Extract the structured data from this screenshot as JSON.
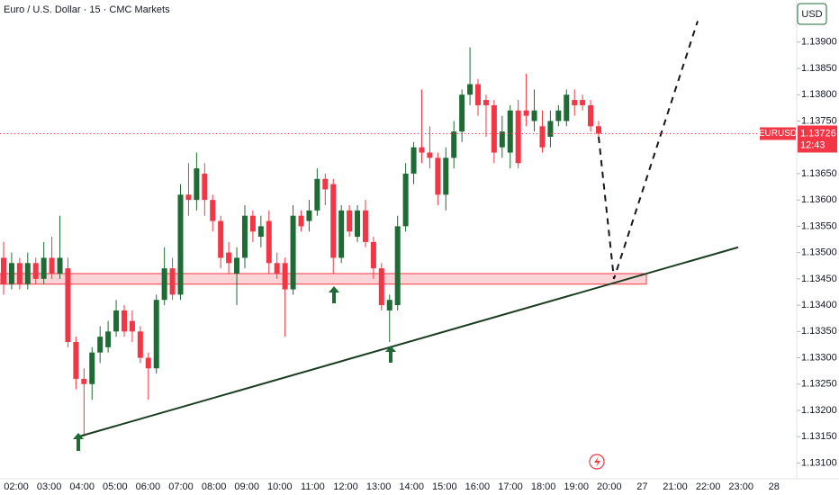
{
  "chart_data": {
    "type": "candlestick",
    "title": "Euro / U.S. Dollar · 15 · CMC Markets",
    "currency": "USD",
    "symbol": "EURUSD",
    "last_price": 1.13726,
    "countdown": "12:43",
    "up_color": "#1e6b35",
    "down_color": "#f23645",
    "grid": false,
    "ylim": [
      1.1307,
      1.1398
    ],
    "yticks": [
      {
        "value": 1.139,
        "label": "1.13900"
      },
      {
        "value": 1.1385,
        "label": "1.13850"
      },
      {
        "value": 1.138,
        "label": "1.13800"
      },
      {
        "value": 1.1375,
        "label": "1.13750"
      },
      {
        "value": 1.1365,
        "label": "1.13650"
      },
      {
        "value": 1.136,
        "label": "1.13600"
      },
      {
        "value": 1.1355,
        "label": "1.13550"
      },
      {
        "value": 1.135,
        "label": "1.13500"
      },
      {
        "value": 1.1345,
        "label": "1.13450"
      },
      {
        "value": 1.134,
        "label": "1.13400"
      },
      {
        "value": 1.1335,
        "label": "1.13350"
      },
      {
        "value": 1.133,
        "label": "1.13300"
      },
      {
        "value": 1.1325,
        "label": "1.13250"
      },
      {
        "value": 1.132,
        "label": "1.13200"
      },
      {
        "value": 1.1315,
        "label": "1.13150"
      },
      {
        "value": 1.131,
        "label": "1.13100"
      }
    ],
    "xtick_labels": [
      "02:00",
      "03:00",
      "04:00",
      "05:00",
      "06:00",
      "07:00",
      "08:00",
      "09:00",
      "10:00",
      "11:00",
      "12:00",
      "13:00",
      "14:00",
      "15:00",
      "16:00",
      "17:00",
      "18:00",
      "19:00",
      "20:00",
      "27",
      "21:00",
      "22:00",
      "23:00",
      "28"
    ],
    "open": [
      1.1349,
      1.1344,
      1.1348,
      1.1344,
      1.1348,
      1.1345,
      1.1349,
      1.1346,
      1.1347,
      1.1333,
      1.1326,
      1.1325,
      1.1331,
      1.1332,
      1.1335,
      1.1339,
      1.1337,
      1.1335,
      1.133,
      1.1328,
      1.1341,
      1.1347,
      1.1342,
      1.1361,
      1.136,
      1.1365,
      1.136,
      1.1356,
      1.135,
      1.1346,
      1.1349,
      1.1357,
      1.1353,
      1.1356,
      1.1348,
      1.1348,
      1.1343,
      1.1357,
      1.1356,
      1.1358,
      1.1364,
      1.1363,
      1.1349,
      1.1358,
      1.1353,
      1.1358,
      1.1352,
      1.1347,
      1.1339,
      1.134,
      1.1355,
      1.1365,
      1.137,
      1.1369,
      1.1368,
      1.1361,
      1.1368,
      1.1373,
      1.138,
      1.1382,
      1.1379,
      1.1378,
      1.137,
      1.1369,
      1.1377,
      1.1377,
      1.1375,
      1.1374,
      1.1372,
      1.1375,
      1.1375,
      1.1379,
      1.1379,
      1.1378,
      1.1374
    ],
    "high": [
      1.1352,
      1.135,
      1.1349,
      1.135,
      1.1349,
      1.1352,
      1.1353,
      1.1357,
      1.1349,
      1.1334,
      1.1328,
      1.1332,
      1.1336,
      1.1337,
      1.1341,
      1.134,
      1.1339,
      1.1336,
      1.1331,
      1.1342,
      1.1351,
      1.1349,
      1.1363,
      1.1367,
      1.1369,
      1.1367,
      1.1361,
      1.1357,
      1.1352,
      1.1351,
      1.1359,
      1.1358,
      1.1357,
      1.1358,
      1.135,
      1.1349,
      1.1359,
      1.1358,
      1.136,
      1.1366,
      1.1365,
      1.1364,
      1.1359,
      1.1359,
      1.1359,
      1.136,
      1.1353,
      1.1348,
      1.1342,
      1.1357,
      1.1367,
      1.1371,
      1.1381,
      1.1374,
      1.1369,
      1.137,
      1.1375,
      1.1381,
      1.1389,
      1.1383,
      1.138,
      1.1379,
      1.1376,
      1.1378,
      1.1379,
      1.1384,
      1.1381,
      1.1377,
      1.1377,
      1.1378,
      1.1381,
      1.1381,
      1.138,
      1.1379,
      1.1375
    ],
    "low": [
      1.1342,
      1.1343,
      1.1343,
      1.1343,
      1.1344,
      1.1344,
      1.1345,
      1.1345,
      1.1332,
      1.1324,
      1.1315,
      1.1322,
      1.1329,
      1.1331,
      1.1334,
      1.1334,
      1.1333,
      1.1329,
      1.1322,
      1.1327,
      1.134,
      1.1341,
      1.1341,
      1.1357,
      1.1358,
      1.1357,
      1.1354,
      1.1347,
      1.1346,
      1.134,
      1.1347,
      1.1352,
      1.1351,
      1.1346,
      1.1345,
      1.1334,
      1.1342,
      1.1354,
      1.1354,
      1.1357,
      1.1359,
      1.1346,
      1.1348,
      1.1353,
      1.1352,
      1.1351,
      1.1345,
      1.1339,
      1.1333,
      1.1339,
      1.1354,
      1.1363,
      1.1367,
      1.1366,
      1.1359,
      1.1358,
      1.1366,
      1.1371,
      1.1378,
      1.1376,
      1.1372,
      1.1367,
      1.1368,
      1.1366,
      1.1366,
      1.1374,
      1.1373,
      1.1369,
      1.137,
      1.1374,
      1.1374,
      1.1376,
      1.1377,
      1.1373,
      1.1372
    ],
    "close": [
      1.1344,
      1.1348,
      1.1344,
      1.1348,
      1.1345,
      1.1349,
      1.1346,
      1.1349,
      1.1333,
      1.1326,
      1.1325,
      1.1331,
      1.1334,
      1.1335,
      1.1339,
      1.1335,
      1.1335,
      1.133,
      1.1328,
      1.1341,
      1.1347,
      1.1342,
      1.1361,
      1.136,
      1.1366,
      1.136,
      1.1356,
      1.1349,
      1.1348,
      1.1349,
      1.1357,
      1.1354,
      1.1355,
      1.1348,
      1.1346,
      1.1343,
      1.1357,
      1.1355,
      1.1358,
      1.1364,
      1.1362,
      1.1349,
      1.1358,
      1.1354,
      1.1358,
      1.1352,
      1.1347,
      1.134,
      1.1341,
      1.1355,
      1.1365,
      1.137,
      1.1369,
      1.1368,
      1.1361,
      1.1368,
      1.1373,
      1.138,
      1.1382,
      1.1378,
      1.1378,
      1.1369,
      1.1373,
      1.1377,
      1.1367,
      1.1376,
      1.1377,
      1.137,
      1.1375,
      1.1377,
      1.138,
      1.1378,
      1.1378,
      1.1374,
      1.13726
    ],
    "zone": {
      "top": 1.1346,
      "bottom": 1.1344,
      "color": "#f23645"
    },
    "trendline": {
      "start": 1.1315,
      "end": 1.1351,
      "color": "#1b3d22"
    },
    "projection": [
      1.1372,
      1.1345,
      1.1394
    ]
  }
}
